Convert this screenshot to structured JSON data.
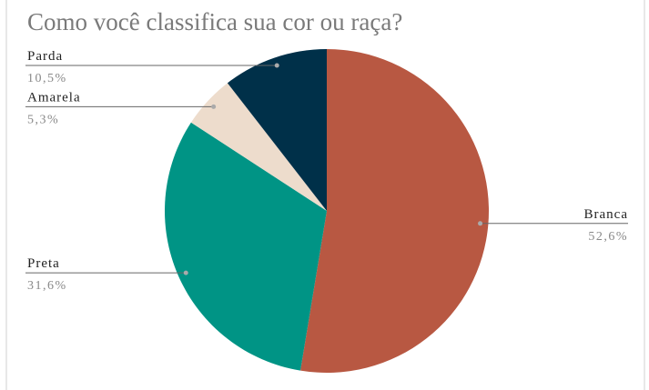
{
  "chart_data": {
    "type": "pie",
    "title": "Como você classifica sua cor ou raça?",
    "categories": [
      "Branca",
      "Preta",
      "Amarela",
      "Parda"
    ],
    "values": [
      52.6,
      31.6,
      5.3,
      10.5
    ],
    "value_labels": [
      "52,6%",
      "31,6%",
      "5,3%",
      "10,5%"
    ],
    "colors": [
      "#b85842",
      "#009485",
      "#eddccc",
      "#003049"
    ]
  }
}
